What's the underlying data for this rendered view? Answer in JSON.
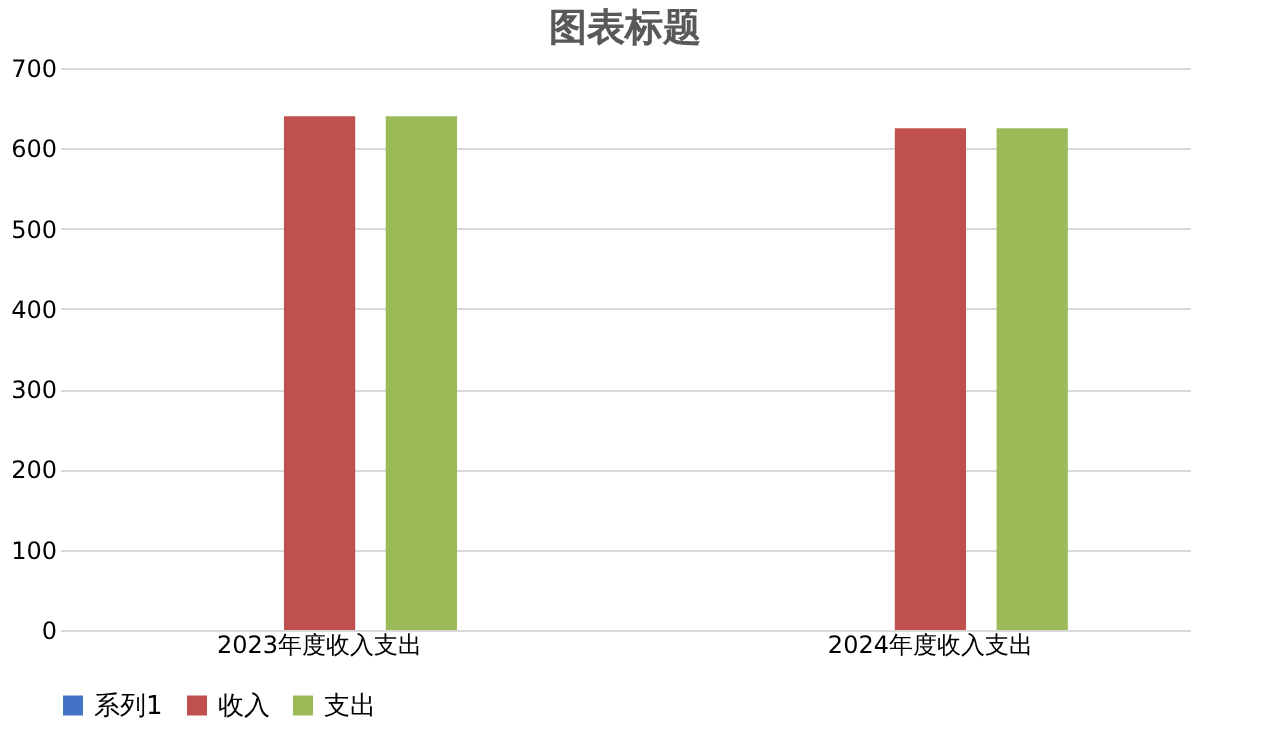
{
  "chart_data": {
    "type": "bar",
    "title": "图表标题",
    "categories": [
      "2023年度收入支出",
      "2024年度收入支出"
    ],
    "series": [
      {
        "name": "系列1",
        "color": "#4472c4",
        "values": [
          null,
          null
        ]
      },
      {
        "name": "收入",
        "color": "#c0504d",
        "values": [
          640,
          625
        ]
      },
      {
        "name": "支出",
        "color": "#9bbb59",
        "values": [
          640,
          625
        ]
      }
    ],
    "ylim": [
      0,
      700
    ],
    "yticks": [
      0,
      100,
      200,
      300,
      400,
      500,
      600,
      700
    ],
    "grid": "y",
    "legend": "bottom"
  }
}
